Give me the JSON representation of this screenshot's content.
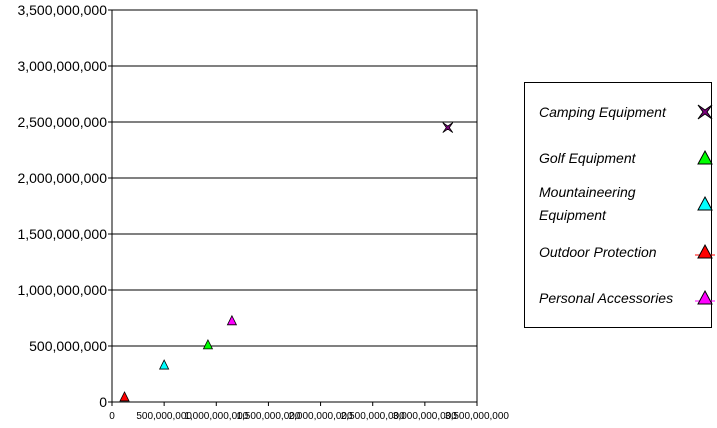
{
  "chart_data": {
    "type": "scatter",
    "title": "",
    "xlabel": "",
    "ylabel": "",
    "xlim": [
      0,
      3500000000
    ],
    "ylim": [
      0,
      3500000000
    ],
    "grid": "horizontal",
    "legend_position": "right",
    "x_tick_labels": [
      "0",
      "500,000,000",
      "1,000,000,000",
      "1,500,000,000",
      "2,000,000,000",
      "2,500,000,000",
      "3,000,000,000",
      "3,500,000,000"
    ],
    "x_ticks": [
      0,
      500000000,
      1000000000,
      1500000000,
      2000000000,
      2500000000,
      3000000000,
      3500000000
    ],
    "y_tick_labels": [
      "0",
      "500,000,000",
      "1,000,000,000",
      "1,500,000,000",
      "2,000,000,000",
      "2,500,000,000",
      "3,000,000,000",
      "3,500,000,000"
    ],
    "y_ticks": [
      0,
      500000000,
      1000000000,
      1500000000,
      2000000000,
      2500000000,
      3000000000,
      3500000000
    ],
    "series": [
      {
        "name": "Camping Equipment",
        "marker": "star4",
        "color": "#800080",
        "points": [
          [
            3220000000,
            2450000000
          ]
        ]
      },
      {
        "name": "Golf Equipment",
        "marker": "triangle",
        "color": "#00ff00",
        "points": [
          [
            920000000,
            510000000
          ]
        ]
      },
      {
        "name": "Mountaineering Equipment",
        "marker": "triangle",
        "color": "#00ffff",
        "points": [
          [
            500000000,
            330000000
          ]
        ]
      },
      {
        "name": "Outdoor Protection",
        "marker": "triangle",
        "color": "#ff0000",
        "points": [
          [
            120000000,
            45000000
          ]
        ]
      },
      {
        "name": "Personal Accessories",
        "marker": "triangle",
        "color": "#ff00ff",
        "points": [
          [
            1150000000,
            725000000
          ]
        ]
      }
    ]
  }
}
